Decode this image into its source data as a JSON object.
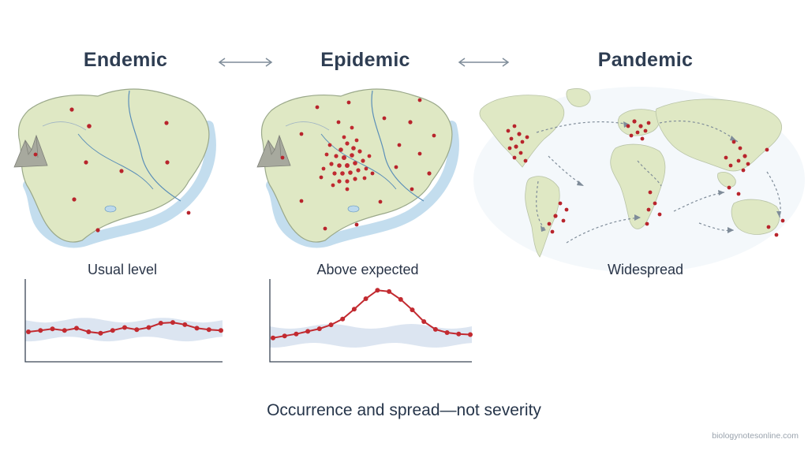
{
  "panels": [
    {
      "title": "Endemic",
      "caption": "Usual level"
    },
    {
      "title": "Epidemic",
      "caption": "Above expected"
    },
    {
      "title": "Pandemic",
      "caption": "Widespread"
    }
  ],
  "footer": "Occurrence and spread—not severity",
  "credit": "biologynotesonline.com",
  "colors": {
    "land": "#dfe8c4",
    "land_border": "#9aa88a",
    "water": "#bcd9ec",
    "river": "#5b8fb8",
    "dot": "#b8242c",
    "band": "#d6e0ee",
    "line": "#c22a30",
    "axis": "#3b4656",
    "arrow": "#7f8c99"
  },
  "chart_data": [
    {
      "type": "line",
      "title": "",
      "xlabel": "",
      "ylabel": "",
      "x": [
        0,
        1,
        2,
        3,
        4,
        5,
        6,
        7,
        8,
        9,
        10,
        11,
        12,
        13,
        14,
        15,
        16
      ],
      "series": [
        {
          "values": [
            0.33,
            0.35,
            0.37,
            0.35,
            0.38,
            0.33,
            0.31,
            0.35,
            0.39,
            0.36,
            0.39,
            0.45,
            0.46,
            0.43,
            0.38,
            0.36,
            0.35
          ]
        }
      ],
      "band": true,
      "ylim": [
        0,
        1
      ]
    },
    {
      "type": "line",
      "title": "",
      "xlabel": "",
      "ylabel": "",
      "x": [
        0,
        1,
        2,
        3,
        4,
        5,
        6,
        7,
        8,
        9,
        10,
        11,
        12,
        13,
        14,
        15,
        16,
        17
      ],
      "series": [
        {
          "values": [
            0.27,
            0.3,
            0.33,
            0.37,
            0.41,
            0.47,
            0.56,
            0.71,
            0.87,
            1.0,
            0.98,
            0.86,
            0.7,
            0.52,
            0.4,
            0.35,
            0.33,
            0.32
          ]
        }
      ],
      "band": true,
      "ylim": [
        0,
        1.1
      ]
    }
  ]
}
